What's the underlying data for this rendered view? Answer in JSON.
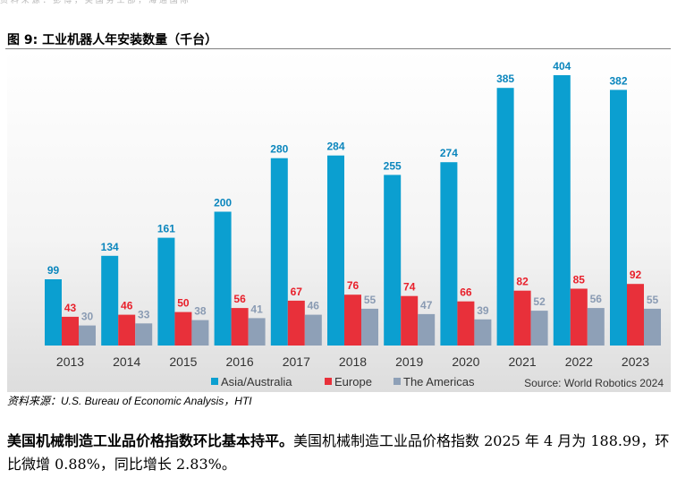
{
  "header_fragment": "资 料 来 源 ： 彭 博 ， 美 国 劳 工 部 ， 海 通 国 际",
  "figure": {
    "title": "图 9: 工业机器人年安装数量（千台）",
    "source_note": "资料来源：U.S. Bureau of Economic Analysis，HTI"
  },
  "chart_data": {
    "type": "bar",
    "title": "",
    "xlabel": "",
    "ylabel": "",
    "categories": [
      "2013",
      "2014",
      "2015",
      "2016",
      "2017",
      "2018",
      "2019",
      "2020",
      "2021",
      "2022",
      "2023"
    ],
    "series": [
      {
        "name": "Asia/Australia",
        "color": "#0b9fd0",
        "label_color": "#0b86bd",
        "values": [
          99,
          134,
          161,
          200,
          280,
          284,
          255,
          274,
          385,
          404,
          382
        ]
      },
      {
        "name": "Europe",
        "color": "#e8303a",
        "label_color": "#e8202b",
        "values": [
          43,
          46,
          50,
          56,
          67,
          76,
          74,
          66,
          82,
          85,
          92
        ]
      },
      {
        "name": "The Americas",
        "color": "#8ea0b7",
        "label_color": "#8a9bb3",
        "values": [
          30,
          33,
          38,
          41,
          46,
          55,
          47,
          39,
          52,
          56,
          55
        ]
      }
    ],
    "ylim": [
      0,
      404
    ],
    "grid": false,
    "legend_position": "bottom-left",
    "source": "Source: World Robotics 2024"
  },
  "paragraph": {
    "lead": "美国机械制造工业品价格指数环比基本持平。",
    "body": "美国机械制造工业品价格指数 2025 年 4 月为 188.99，环比微增 0.88%，同比增长 2.83%。"
  }
}
